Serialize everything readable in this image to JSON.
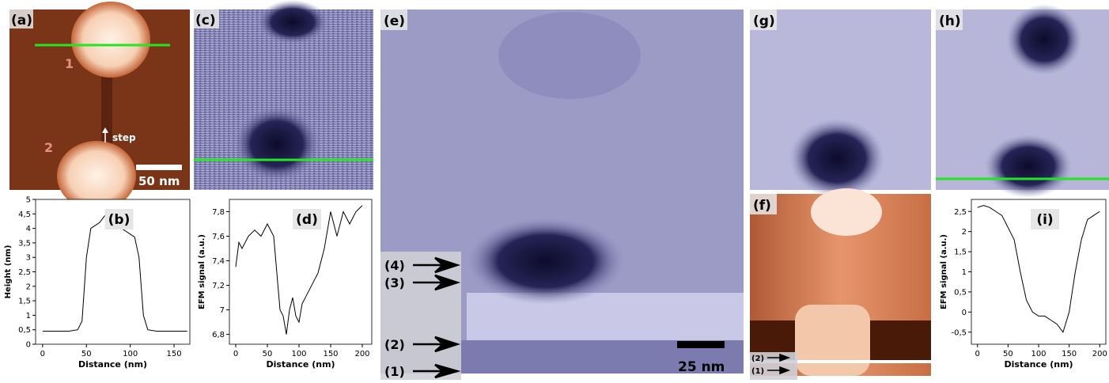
{
  "panels": {
    "a": {
      "label": "(a)",
      "particle_1": "1",
      "particle_2": "2",
      "arrow": "step",
      "scale_bar": "50 nm"
    },
    "c": {
      "label": "(c)"
    },
    "e": {
      "label": "(e)",
      "scale_bar": "25 nm",
      "arrows": [
        "(4)",
        "(3)",
        "(2)",
        "(1)"
      ]
    },
    "f": {
      "label": "(f)",
      "arrows": [
        "(2)",
        "(1)"
      ]
    },
    "g": {
      "label": "(g)"
    },
    "h": {
      "label": "(h)"
    }
  },
  "chart_data": [
    {
      "type": "line",
      "title": "(b)",
      "x_label": "Distance (nm)",
      "y_label": "Height (nm)",
      "x": [
        0,
        10,
        20,
        30,
        40,
        45,
        50,
        55,
        60,
        65,
        70,
        75,
        80,
        85,
        90,
        95,
        100,
        105,
        110,
        115,
        120,
        130,
        140,
        150,
        160,
        165
      ],
      "values": [
        0.45,
        0.45,
        0.45,
        0.45,
        0.5,
        0.8,
        3.0,
        4.0,
        4.1,
        4.2,
        4.4,
        4.6,
        4.5,
        4.2,
        4.0,
        3.9,
        3.8,
        3.7,
        3.0,
        1.0,
        0.5,
        0.45,
        0.45,
        0.45,
        0.45,
        0.45
      ],
      "color": "#000000",
      "xlim": [
        -8,
        168
      ],
      "xticks": [
        0,
        50,
        100,
        150
      ],
      "ylim": [
        0,
        5
      ],
      "yticks": [
        0,
        {
          "value": 0.5,
          "label": "0,5"
        },
        1,
        {
          "value": 1.5,
          "label": "1,5"
        },
        2,
        {
          "value": 2.5,
          "label": "2,5"
        },
        3,
        {
          "value": 3.5,
          "label": "3,5"
        },
        4,
        {
          "value": 4.5,
          "label": "4,5"
        },
        5
      ]
    },
    {
      "type": "line",
      "title": "(d)",
      "x_label": "Distance (nm)",
      "y_label": "EFM signal (a.u.)",
      "x": [
        0,
        5,
        10,
        20,
        30,
        40,
        50,
        60,
        65,
        70,
        75,
        80,
        85,
        90,
        95,
        100,
        105,
        110,
        120,
        130,
        140,
        150,
        160,
        170,
        180,
        190,
        200
      ],
      "values": [
        7.35,
        7.55,
        7.5,
        7.6,
        7.65,
        7.6,
        7.7,
        7.6,
        7.3,
        7.0,
        6.95,
        6.8,
        7.0,
        7.1,
        6.95,
        6.9,
        7.05,
        7.1,
        7.2,
        7.3,
        7.5,
        7.8,
        7.6,
        7.8,
        7.7,
        7.8,
        7.85
      ],
      "color": "#000000",
      "xlim": [
        -10,
        215
      ],
      "xticks": [
        0,
        50,
        100,
        150,
        200
      ],
      "ylim": [
        6.72,
        7.9
      ],
      "yticks": [
        {
          "value": 6.8,
          "label": "6,8"
        },
        7,
        {
          "value": 7.2,
          "label": "7,2"
        },
        {
          "value": 7.4,
          "label": "7,4"
        },
        {
          "value": 7.6,
          "label": "7,6"
        },
        {
          "value": 7.8,
          "label": "7,8"
        }
      ]
    },
    {
      "type": "line",
      "title": "(i)",
      "x_label": "Distance (nm)",
      "y_label": "EFM signal (a.u.)",
      "x": [
        0,
        10,
        20,
        30,
        40,
        50,
        60,
        70,
        80,
        90,
        100,
        110,
        120,
        130,
        140,
        150,
        160,
        170,
        180,
        190,
        200
      ],
      "values": [
        2.6,
        2.65,
        2.6,
        2.5,
        2.4,
        2.1,
        1.8,
        1.0,
        0.3,
        0.0,
        -0.1,
        -0.1,
        -0.2,
        -0.3,
        -0.5,
        0.0,
        1.0,
        1.8,
        2.3,
        2.4,
        2.5
      ],
      "color": "#000000",
      "xlim": [
        -10,
        210
      ],
      "xticks": [
        0,
        50,
        100,
        150,
        200
      ],
      "ylim": [
        -0.8,
        2.8
      ],
      "yticks": [
        {
          "value": -0.5,
          "label": "-0,5"
        },
        0,
        {
          "value": 0.5,
          "label": "0,5"
        },
        1,
        {
          "value": 1.5,
          "label": "1,5"
        },
        2,
        {
          "value": 2.5,
          "label": "2,5"
        }
      ]
    }
  ]
}
